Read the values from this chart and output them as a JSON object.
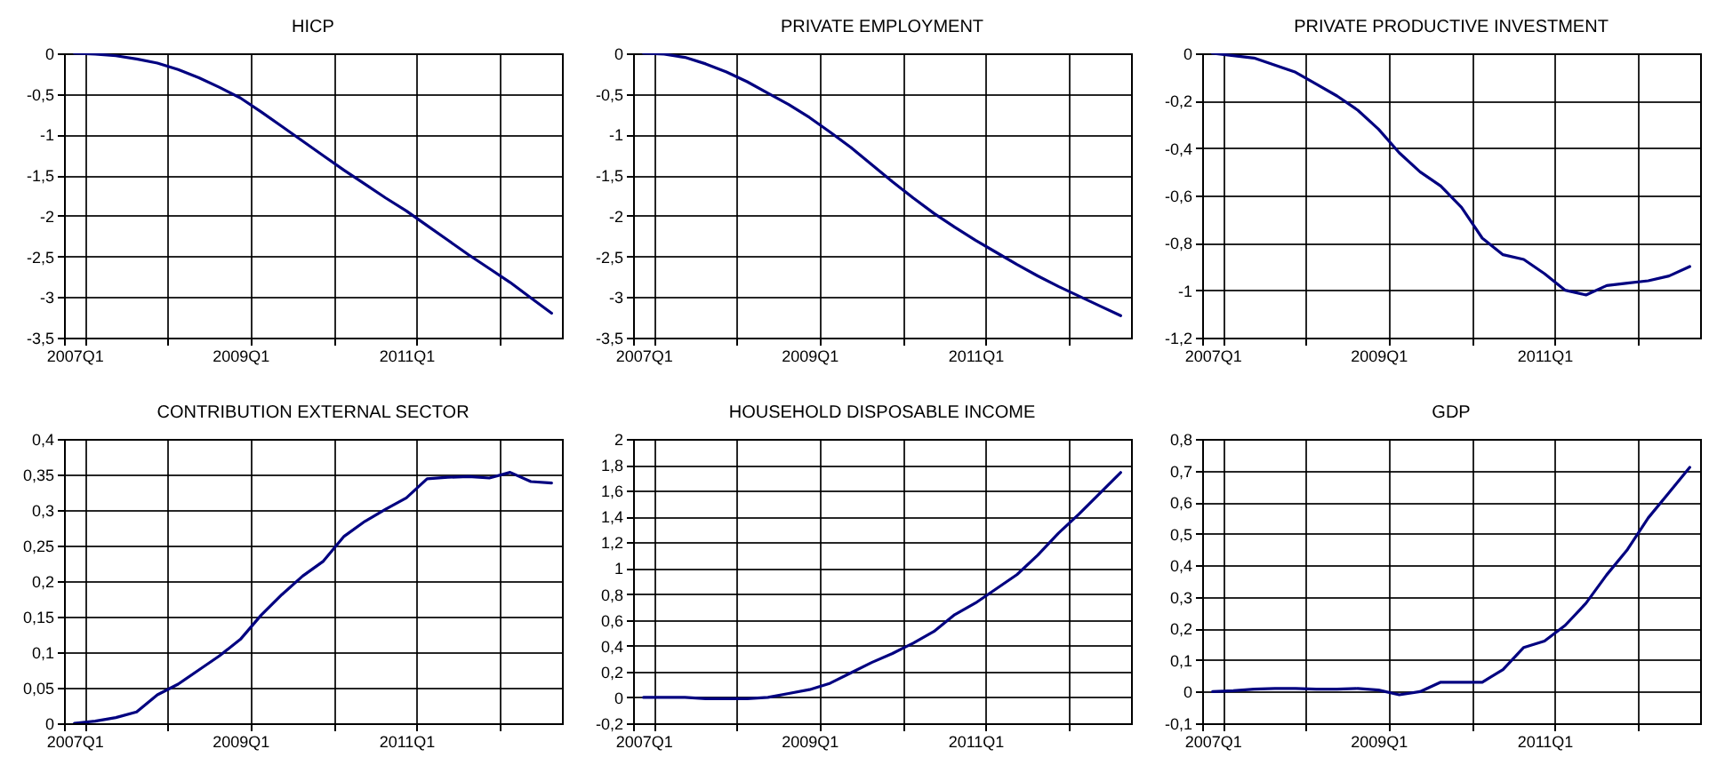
{
  "chart_data": [
    {
      "type": "line",
      "title": "HICP",
      "categories": [
        "2007Q1",
        null,
        null,
        null,
        null,
        null,
        null,
        null,
        "2009Q1",
        null,
        null,
        null,
        null,
        null,
        null,
        null,
        "2011Q1",
        null,
        null,
        null,
        null,
        null,
        null,
        null
      ],
      "color": "#000080",
      "grid": true,
      "values": [
        0,
        -0.01,
        -0.03,
        -0.07,
        -0.12,
        -0.2,
        -0.3,
        -0.42,
        -0.55,
        -0.72,
        -0.9,
        -1.08,
        -1.26,
        -1.44,
        -1.61,
        -1.78,
        -1.94,
        -2.12,
        -2.3,
        -2.48,
        -2.65,
        -2.82,
        -3.01,
        -3.2
      ],
      "ylim": [
        -3.5,
        0
      ],
      "yticks": [
        0,
        {
          "value": -0.5,
          "label": "-0,5"
        },
        -1,
        {
          "value": -1.5,
          "label": "-1,5"
        },
        -2,
        {
          "value": -2.5,
          "label": "-2,5"
        },
        -3,
        {
          "value": -3.5,
          "label": "-3,5"
        }
      ]
    },
    {
      "type": "line",
      "title": "PRIVATE EMPLOYMENT",
      "categories": [
        "2007Q1",
        null,
        null,
        null,
        null,
        null,
        null,
        null,
        "2009Q1",
        null,
        null,
        null,
        null,
        null,
        null,
        null,
        "2011Q1",
        null,
        null,
        null,
        null,
        null,
        null,
        null
      ],
      "color": "#000080",
      "grid": true,
      "values": [
        0,
        -0.01,
        -0.05,
        -0.13,
        -0.23,
        -0.35,
        -0.49,
        -0.63,
        -0.79,
        -0.97,
        -1.16,
        -1.37,
        -1.58,
        -1.78,
        -1.97,
        -2.14,
        -2.3,
        -2.45,
        -2.6,
        -2.74,
        -2.87,
        -2.99,
        -3.11,
        -3.23
      ],
      "ylim": [
        -3.5,
        0
      ],
      "yticks": [
        0,
        {
          "value": -0.5,
          "label": "-0,5"
        },
        -1,
        {
          "value": -1.5,
          "label": "-1,5"
        },
        -2,
        {
          "value": -2.5,
          "label": "-2,5"
        },
        -3,
        {
          "value": -3.5,
          "label": "-3,5"
        }
      ]
    },
    {
      "type": "line",
      "title": "PRIVATE PRODUCTIVE INVESTMENT",
      "categories": [
        "2007Q1",
        null,
        null,
        null,
        null,
        null,
        null,
        null,
        "2009Q1",
        null,
        null,
        null,
        null,
        null,
        null,
        null,
        "2011Q1",
        null,
        null,
        null,
        null,
        null,
        null,
        null
      ],
      "color": "#000080",
      "grid": true,
      "values": [
        0,
        -0.01,
        -0.02,
        -0.05,
        -0.08,
        -0.13,
        -0.18,
        -0.24,
        -0.32,
        -0.42,
        -0.5,
        -0.56,
        -0.65,
        -0.78,
        -0.85,
        -0.87,
        -0.93,
        -1.0,
        -1.02,
        -0.98,
        -0.97,
        -0.96,
        -0.94,
        -0.9
      ],
      "ylim": [
        -1.2,
        0
      ],
      "yticks": [
        0,
        {
          "value": -0.2,
          "label": "-0,2"
        },
        {
          "value": -0.4,
          "label": "-0,4"
        },
        {
          "value": -0.6,
          "label": "-0,6"
        },
        {
          "value": -0.8,
          "label": "-0,8"
        },
        -1,
        {
          "value": -1.2,
          "label": "-1,2"
        }
      ]
    },
    {
      "type": "line",
      "title": "CONTRIBUTION EXTERNAL SECTOR",
      "categories": [
        "2007Q1",
        null,
        null,
        null,
        null,
        null,
        null,
        null,
        "2009Q1",
        null,
        null,
        null,
        null,
        null,
        null,
        null,
        "2011Q1",
        null,
        null,
        null,
        null,
        null,
        null,
        null
      ],
      "color": "#000080",
      "grid": true,
      "values": [
        0,
        0.003,
        0.008,
        0.016,
        0.04,
        0.055,
        0.075,
        0.095,
        0.118,
        0.152,
        0.181,
        0.207,
        0.228,
        0.263,
        0.284,
        0.301,
        0.317,
        0.344,
        0.346,
        0.347,
        0.345,
        0.353,
        0.34,
        0.338
      ],
      "ylim": [
        0,
        0.4
      ],
      "yticks": [
        0,
        {
          "value": 0.05,
          "label": "0,05"
        },
        {
          "value": 0.1,
          "label": "0,1"
        },
        {
          "value": 0.15,
          "label": "0,15"
        },
        {
          "value": 0.2,
          "label": "0,2"
        },
        {
          "value": 0.25,
          "label": "0,25"
        },
        {
          "value": 0.3,
          "label": "0,3"
        },
        {
          "value": 0.35,
          "label": "0,35"
        },
        {
          "value": 0.4,
          "label": "0,4"
        }
      ]
    },
    {
      "type": "line",
      "title": "HOUSEHOLD DISPOSABLE INCOME",
      "categories": [
        "2007Q1",
        null,
        null,
        null,
        null,
        null,
        null,
        null,
        "2009Q1",
        null,
        null,
        null,
        null,
        null,
        null,
        null,
        "2011Q1",
        null,
        null,
        null,
        null,
        null,
        null,
        null
      ],
      "color": "#000080",
      "grid": true,
      "values": [
        0,
        0,
        0,
        -0.01,
        -0.01,
        -0.01,
        0,
        0.03,
        0.06,
        0.11,
        0.19,
        0.27,
        0.34,
        0.42,
        0.51,
        0.64,
        0.73,
        0.84,
        0.95,
        1.1,
        1.27,
        1.42,
        1.58,
        1.74
      ],
      "ylim": [
        -0.2,
        2
      ],
      "yticks": [
        {
          "value": -0.2,
          "label": "-0,2"
        },
        0,
        {
          "value": 0.2,
          "label": "0,2"
        },
        {
          "value": 0.4,
          "label": "0,4"
        },
        {
          "value": 0.6,
          "label": "0,6"
        },
        {
          "value": 0.8,
          "label": "0,8"
        },
        1,
        {
          "value": 1.2,
          "label": "1,2"
        },
        {
          "value": 1.4,
          "label": "1,4"
        },
        {
          "value": 1.6,
          "label": "1,6"
        },
        {
          "value": 1.8,
          "label": "1,8"
        },
        2
      ]
    },
    {
      "type": "line",
      "title": "GDP",
      "categories": [
        "2007Q1",
        null,
        null,
        null,
        null,
        null,
        null,
        null,
        "2009Q1",
        null,
        null,
        null,
        null,
        null,
        null,
        null,
        "2011Q1",
        null,
        null,
        null,
        null,
        null,
        null,
        null
      ],
      "color": "#000080",
      "grid": true,
      "values": [
        0,
        0.003,
        0.008,
        0.01,
        0.01,
        0.008,
        0.008,
        0.01,
        0.005,
        -0.01,
        0,
        0.03,
        0.03,
        0.03,
        0.07,
        0.14,
        0.16,
        0.21,
        0.28,
        0.37,
        0.45,
        0.55,
        0.63,
        0.71
      ],
      "ylim": [
        -0.1,
        0.8
      ],
      "yticks": [
        {
          "value": -0.1,
          "label": "-0,1"
        },
        0,
        {
          "value": 0.1,
          "label": "0,1"
        },
        {
          "value": 0.2,
          "label": "0,2"
        },
        {
          "value": 0.3,
          "label": "0,3"
        },
        {
          "value": 0.4,
          "label": "0,4"
        },
        {
          "value": 0.5,
          "label": "0,5"
        },
        {
          "value": 0.6,
          "label": "0,6"
        },
        {
          "value": 0.7,
          "label": "0,7"
        },
        {
          "value": 0.8,
          "label": "0,8"
        }
      ]
    }
  ]
}
